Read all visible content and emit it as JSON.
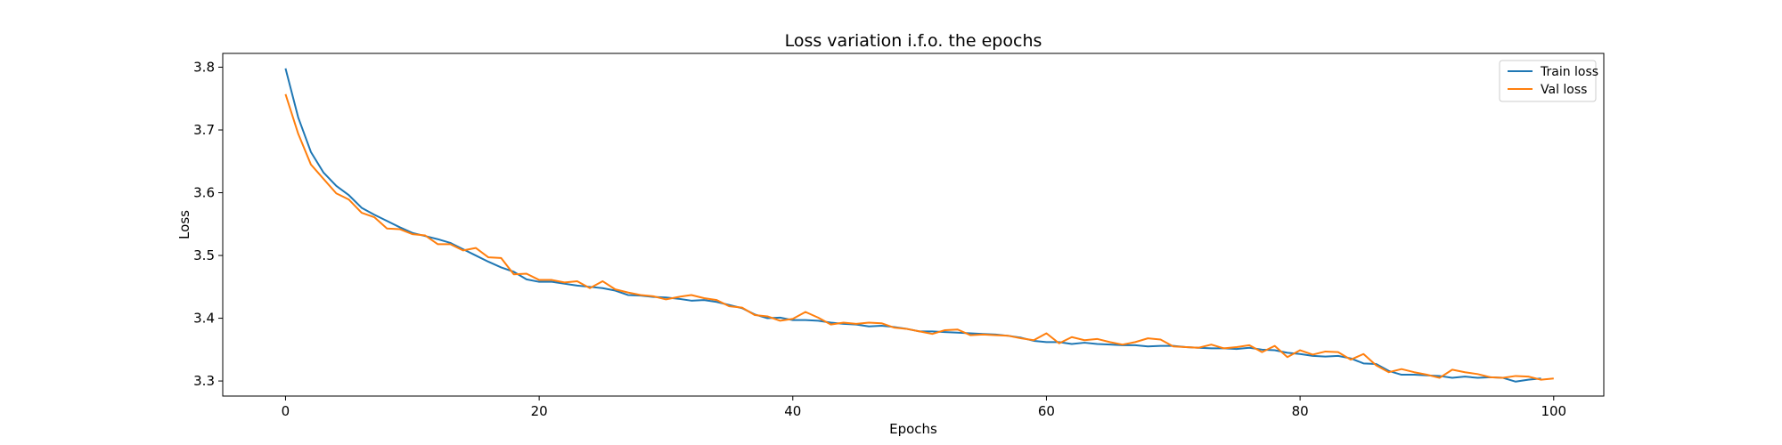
{
  "chart_data": {
    "type": "line",
    "title": "Loss variation i.f.o. the epochs",
    "xlabel": "Epochs",
    "ylabel": "Loss",
    "xlim": [
      -4.95,
      103.95
    ],
    "ylim": [
      3.276,
      3.822
    ],
    "xticks": [
      0,
      20,
      40,
      60,
      80,
      100
    ],
    "yticks": [
      3.3,
      3.4,
      3.5,
      3.6,
      3.7,
      3.8
    ],
    "xtick_labels": [
      "0",
      "20",
      "40",
      "60",
      "80",
      "100"
    ],
    "ytick_labels": [
      "3.3",
      "3.4",
      "3.5",
      "3.6",
      "3.7",
      "3.8"
    ],
    "legend_position": "upper right",
    "grid": false,
    "series": [
      {
        "name": "Train loss",
        "color": "#1f77b4",
        "x": [
          0,
          1,
          2,
          3,
          4,
          5,
          6,
          7,
          8,
          9,
          10,
          11,
          12,
          13,
          14,
          15,
          16,
          17,
          18,
          19,
          20,
          21,
          22,
          23,
          24,
          25,
          26,
          27,
          28,
          29,
          30,
          31,
          32,
          33,
          34,
          35,
          36,
          37,
          38,
          39,
          40,
          41,
          42,
          43,
          44,
          45,
          46,
          47,
          48,
          49,
          50,
          51,
          52,
          53,
          54,
          55,
          56,
          57,
          58,
          59,
          60,
          61,
          62,
          63,
          64,
          65,
          66,
          67,
          68,
          69,
          70,
          71,
          72,
          73,
          74,
          75,
          76,
          77,
          78,
          79,
          80,
          81,
          82,
          83,
          84,
          85,
          86,
          87,
          88,
          89,
          90,
          91,
          92,
          93,
          94,
          95,
          96,
          97,
          98,
          99
        ],
        "values": [
          3.798,
          3.72,
          3.665,
          3.632,
          3.611,
          3.596,
          3.576,
          3.565,
          3.555,
          3.545,
          3.536,
          3.531,
          3.526,
          3.52,
          3.51,
          3.5,
          3.49,
          3.481,
          3.474,
          3.462,
          3.458,
          3.458,
          3.455,
          3.452,
          3.45,
          3.448,
          3.444,
          3.437,
          3.436,
          3.434,
          3.433,
          3.431,
          3.428,
          3.429,
          3.426,
          3.421,
          3.416,
          3.406,
          3.4,
          3.401,
          3.397,
          3.397,
          3.396,
          3.393,
          3.391,
          3.39,
          3.387,
          3.388,
          3.386,
          3.383,
          3.379,
          3.379,
          3.378,
          3.377,
          3.376,
          3.375,
          3.374,
          3.372,
          3.369,
          3.364,
          3.362,
          3.362,
          3.359,
          3.361,
          3.359,
          3.358,
          3.357,
          3.357,
          3.355,
          3.356,
          3.356,
          3.354,
          3.353,
          3.352,
          3.352,
          3.351,
          3.353,
          3.35,
          3.349,
          3.345,
          3.343,
          3.34,
          3.339,
          3.34,
          3.336,
          3.328,
          3.327,
          3.316,
          3.31,
          3.31,
          3.309,
          3.308,
          3.305,
          3.307,
          3.305,
          3.306,
          3.305,
          3.299,
          3.302,
          3.304
        ]
      },
      {
        "name": "Val loss",
        "color": "#ff7f0e",
        "x": [
          0,
          1,
          2,
          3,
          4,
          5,
          6,
          7,
          8,
          9,
          10,
          11,
          12,
          13,
          14,
          15,
          16,
          17,
          18,
          19,
          20,
          21,
          22,
          23,
          24,
          25,
          26,
          27,
          28,
          29,
          30,
          31,
          32,
          33,
          34,
          35,
          36,
          37,
          38,
          39,
          40,
          41,
          42,
          43,
          44,
          45,
          46,
          47,
          48,
          49,
          50,
          51,
          52,
          53,
          54,
          55,
          56,
          57,
          58,
          59,
          60,
          61,
          62,
          63,
          64,
          65,
          66,
          67,
          68,
          69,
          70,
          71,
          72,
          73,
          74,
          75,
          76,
          77,
          78,
          79,
          80,
          81,
          82,
          83,
          84,
          85,
          86,
          87,
          88,
          89,
          90,
          91,
          92,
          93,
          94,
          95,
          96,
          97,
          98,
          99,
          100
        ],
        "values": [
          3.757,
          3.694,
          3.645,
          3.622,
          3.599,
          3.589,
          3.568,
          3.561,
          3.543,
          3.542,
          3.534,
          3.532,
          3.518,
          3.518,
          3.508,
          3.512,
          3.497,
          3.496,
          3.47,
          3.471,
          3.461,
          3.461,
          3.457,
          3.459,
          3.448,
          3.459,
          3.446,
          3.441,
          3.437,
          3.435,
          3.43,
          3.434,
          3.437,
          3.432,
          3.429,
          3.419,
          3.417,
          3.405,
          3.403,
          3.396,
          3.399,
          3.41,
          3.401,
          3.39,
          3.393,
          3.391,
          3.393,
          3.392,
          3.385,
          3.383,
          3.379,
          3.375,
          3.381,
          3.382,
          3.373,
          3.374,
          3.373,
          3.372,
          3.368,
          3.365,
          3.376,
          3.36,
          3.37,
          3.365,
          3.367,
          3.362,
          3.358,
          3.362,
          3.368,
          3.366,
          3.355,
          3.354,
          3.353,
          3.358,
          3.352,
          3.354,
          3.357,
          3.346,
          3.356,
          3.338,
          3.349,
          3.342,
          3.347,
          3.346,
          3.334,
          3.343,
          3.325,
          3.314,
          3.319,
          3.314,
          3.31,
          3.305,
          3.318,
          3.314,
          3.311,
          3.306,
          3.305,
          3.308,
          3.307,
          3.302,
          3.304
        ]
      }
    ]
  }
}
